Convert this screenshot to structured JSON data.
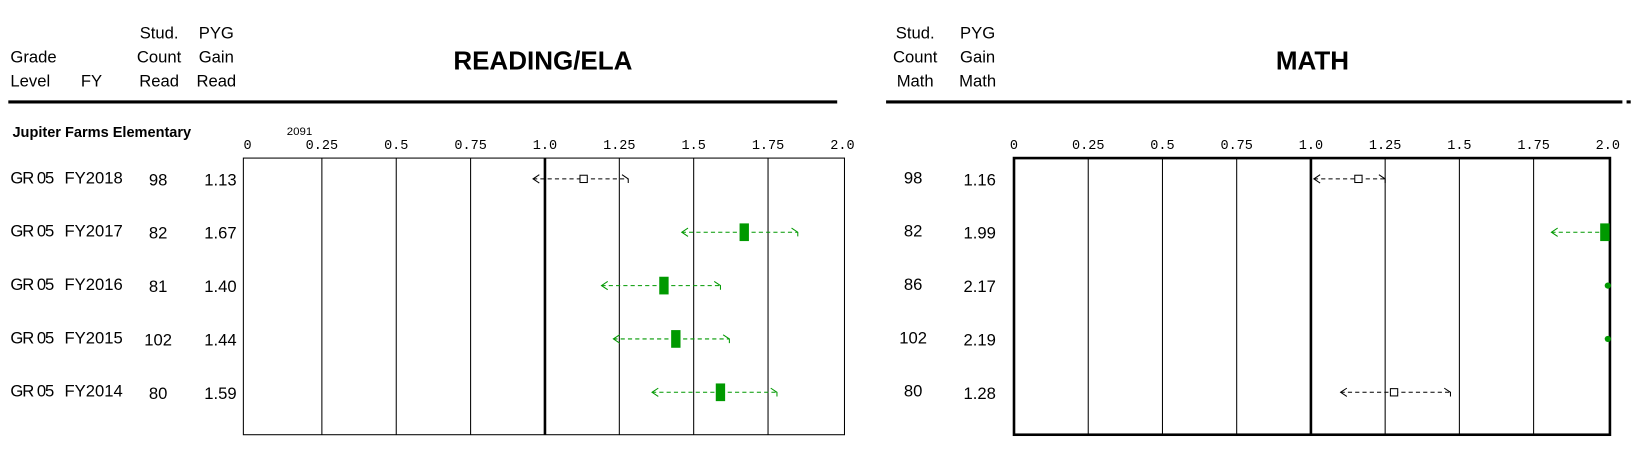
{
  "table": {
    "school": "Jupiter Farms Elementary",
    "reading_columns": [
      {
        "lines": [
          "Grade",
          "Level"
        ]
      },
      {
        "lines": [
          "FY"
        ]
      },
      {
        "lines": [
          "Stud.",
          "Count",
          "Read"
        ]
      },
      {
        "lines": [
          "PYG",
          "Gain",
          "Read"
        ]
      }
    ],
    "math_columns": [
      {
        "lines": [
          "Stud.",
          "Count",
          "Math"
        ]
      },
      {
        "lines": [
          "PYG",
          "Gain",
          "Math"
        ]
      }
    ],
    "rows": [
      {
        "grade": "GR 05",
        "fy": "FY2018",
        "count_read": 98,
        "count_math": 98
      },
      {
        "grade": "GR 05",
        "fy": "FY2017",
        "count_read": 82,
        "count_math": 82
      },
      {
        "grade": "GR 05",
        "fy": "FY2016",
        "count_read": 81,
        "count_math": 86
      },
      {
        "grade": "GR 05",
        "fy": "FY2015",
        "count_read": 102,
        "count_math": 102
      },
      {
        "grade": "GR 05",
        "fy": "FY2014",
        "count_read": 80,
        "count_math": 80
      }
    ]
  },
  "chart_data": [
    {
      "type": "interval",
      "title": "READING/ELA",
      "annotation": "2091",
      "values": [
        1.13,
        1.67,
        1.4,
        1.44,
        1.59
      ],
      "value_labels": [
        "1.13",
        "1.67",
        "1.40",
        "1.44",
        "1.59"
      ],
      "lower": [
        0.96,
        1.46,
        1.19,
        1.23,
        1.36
      ],
      "upper": [
        1.28,
        1.85,
        1.59,
        1.62,
        1.78
      ],
      "filled": [
        false,
        true,
        true,
        true,
        true
      ],
      "colors": [
        "#000000",
        "#009900",
        "#009900",
        "#009900",
        "#009900"
      ],
      "xlim": [
        0,
        2
      ],
      "xticks": [
        0,
        0.25,
        0.5,
        0.75,
        {
          "value": 1,
          "label": "1.0"
        },
        1.25,
        1.5,
        1.75,
        {
          "value": 2,
          "label": "2.0"
        }
      ],
      "reference_line": 1
    },
    {
      "type": "interval",
      "title": "MATH",
      "values": [
        1.16,
        1.99,
        2.17,
        2.19,
        1.28
      ],
      "value_labels": [
        "1.16",
        "1.99",
        "2.17",
        "2.19",
        "1.28"
      ],
      "lower": [
        1.01,
        1.81,
        null,
        null,
        1.1
      ],
      "upper": [
        1.25,
        null,
        null,
        null,
        1.47
      ],
      "filled": [
        false,
        true,
        true,
        true,
        false
      ],
      "colors": [
        "#000000",
        "#009900",
        "#009900",
        "#009900",
        "#000000"
      ],
      "xlim": [
        0,
        2
      ],
      "xticks": [
        0,
        0.25,
        0.5,
        0.75,
        {
          "value": 1,
          "label": "1.0"
        },
        1.25,
        1.5,
        1.75,
        {
          "value": 2,
          "label": "2.0"
        }
      ],
      "reference_line": 1
    }
  ]
}
